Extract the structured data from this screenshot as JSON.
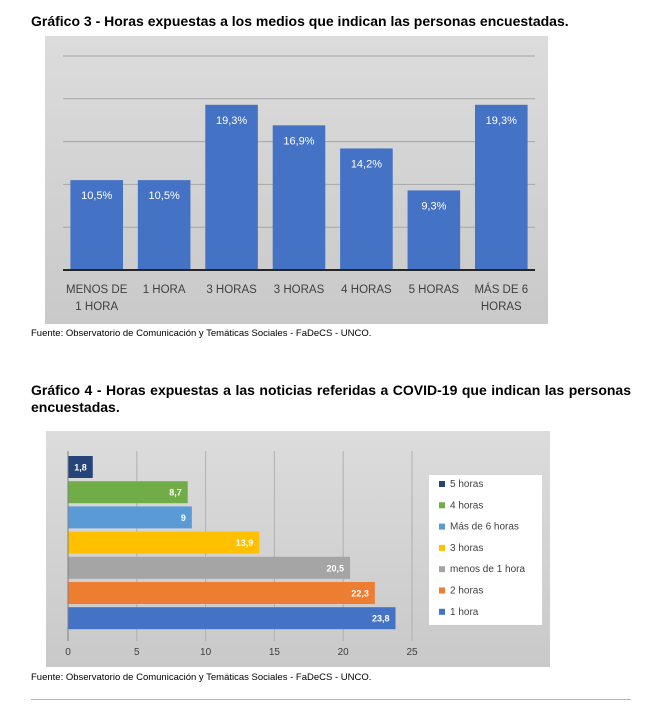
{
  "figure1": {
    "title": "Gráfico 3 -  Horas expuestas a los medios que indican las personas encuestadas.",
    "source": "Fuente: Observatorio de Comunicación y Temáticas Sociales - FaDeCS - UNCO.",
    "chart_data": {
      "type": "bar",
      "orientation": "vertical",
      "categories": [
        "MENOS DE 1 HORA",
        "1 HORA",
        "3 HORAS",
        "3 HORAS",
        "4 HORAS",
        "5 HORAS",
        "MÁS DE 6 HORAS"
      ],
      "category_lines": [
        [
          "MENOS DE",
          "1 HORA"
        ],
        [
          "1 HORA"
        ],
        [
          "3 HORAS"
        ],
        [
          "3 HORAS"
        ],
        [
          "4 HORAS"
        ],
        [
          "5 HORAS"
        ],
        [
          "MÁS DE 6",
          "HORAS"
        ]
      ],
      "values": [
        10.5,
        10.5,
        19.3,
        16.9,
        14.2,
        9.3,
        19.3
      ],
      "data_labels": [
        "10,5%",
        "10,5%",
        "19,3%",
        "16,9%",
        "14,2%",
        "9,3%",
        "19,3%"
      ],
      "ylim": [
        0,
        25
      ],
      "gridlines": true,
      "bar_color": "#4472c4"
    }
  },
  "figure2": {
    "title": "Gráfico 4 -  Horas expuestas a las noticias referidas a COVID-19 que indican las personas encuestadas.",
    "source": "Fuente: Observatorio de Comunicación y Temáticas Sociales - FaDeCS - UNCO.",
    "chart_data": {
      "type": "bar",
      "orientation": "horizontal",
      "series": [
        {
          "name": "5 horas",
          "value": 1.8,
          "label": "1,8",
          "color": "#264478"
        },
        {
          "name": "4 horas",
          "value": 8.7,
          "label": "8,7",
          "color": "#70ad47"
        },
        {
          "name": "Más de 6 horas",
          "value": 9,
          "label": "9",
          "color": "#5b9bd5"
        },
        {
          "name": "3 horas",
          "value": 13.9,
          "label": "13,9",
          "color": "#ffc000"
        },
        {
          "name": "menos de 1 hora",
          "value": 20.5,
          "label": "20,5",
          "color": "#a5a5a5"
        },
        {
          "name": "2 horas",
          "value": 22.3,
          "label": "22,3",
          "color": "#ed7d31"
        },
        {
          "name": "1 hora",
          "value": 23.8,
          "label": "23,8",
          "color": "#4472c4"
        }
      ],
      "x_ticks": [
        "0",
        "5",
        "10",
        "15",
        "20",
        "25"
      ],
      "xlim": [
        0,
        25
      ],
      "gridlines": true,
      "legend_position": "right"
    }
  }
}
